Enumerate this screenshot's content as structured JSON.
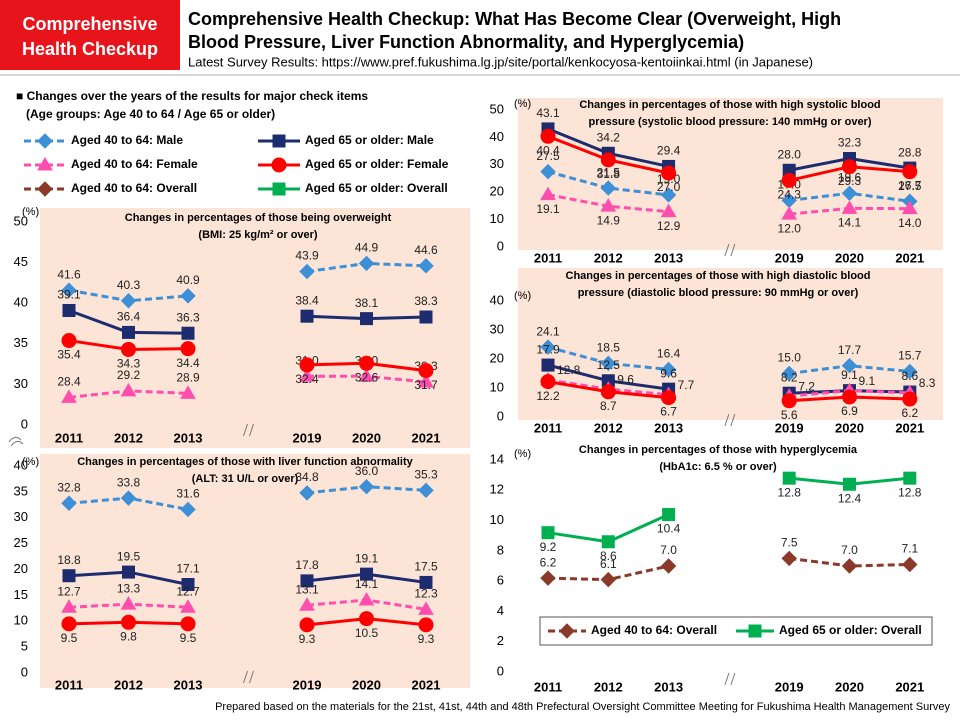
{
  "header": {
    "badge": [
      "Comprehensive",
      "Health Checkup"
    ],
    "title": [
      "Comprehensive Health Checkup: What Has Become Clear (Overweight, High",
      "Blood Pressure, Liver Function Abnormality, and Hyperglycemia)"
    ],
    "subtitle": "Latest Survey Results: https://www.pref.fukushima.lg.jp/site/portal/kenkocyosa-kentoiinkai.html (in Japanese)"
  },
  "intro": [
    "■ Changes over the years of the results for major check items",
    "(Age groups: Age 40 to 64 / Age 65 or older)"
  ],
  "legend": [
    {
      "name": "Aged 40 to 64: Male",
      "color": "#3d8fd6",
      "dashed": true,
      "marker": "diamond"
    },
    {
      "name": "Aged 65 or older: Male",
      "color": "#1c2c6e",
      "dashed": false,
      "marker": "square"
    },
    {
      "name": "Aged 40 to 64: Female",
      "color": "#ff4fae",
      "dashed": true,
      "marker": "triangle"
    },
    {
      "name": "Aged 65 or older: Female",
      "color": "#ff0000",
      "dashed": false,
      "marker": "circle"
    },
    {
      "name": "Aged 40 to 64: Overall",
      "color": "#8b3a2a",
      "dashed": true,
      "marker": "diamond"
    },
    {
      "name": "Aged 65 or older: Overall",
      "color": "#00b050",
      "dashed": false,
      "marker": "square"
    }
  ],
  "chart_data": [
    {
      "type": "line",
      "title": "Changes in percentages of those being overweight",
      "subtitle": "(BMI: 25 kg/m² or over)",
      "ylabel": "(%)",
      "categories": [
        "2011",
        "2012",
        "2013",
        null,
        "2019",
        "2020",
        "2021"
      ],
      "ylim": [
        0,
        50
      ],
      "yticks": [
        0,
        30,
        35,
        40,
        45,
        50
      ],
      "y_break": true,
      "series": [
        {
          "color": "#3d8fd6",
          "dashed": true,
          "marker": "diamond",
          "label_pos": "above",
          "values": [
            41.6,
            40.3,
            40.9,
            null,
            43.9,
            44.9,
            44.6
          ]
        },
        {
          "color": "#1c2c6e",
          "dashed": false,
          "marker": "square",
          "label_pos": "above",
          "values": [
            39.1,
            36.4,
            36.3,
            null,
            38.4,
            38.1,
            38.3
          ]
        },
        {
          "color": "#ff4fae",
          "dashed": true,
          "marker": "triangle",
          "label_pos": "above",
          "values": [
            28.4,
            29.2,
            28.9,
            null,
            31,
            31,
            30.3
          ],
          "value_labels": [
            "28.4",
            "29.2",
            "28.9",
            null,
            "31.0",
            "31.0",
            "30.3"
          ]
        },
        {
          "color": "#ff0000",
          "dashed": false,
          "marker": "circle",
          "label_pos": "below",
          "values": [
            35.4,
            34.3,
            34.4,
            null,
            32.4,
            32.6,
            31.7
          ]
        }
      ]
    },
    {
      "type": "line",
      "title": "Changes in percentages of those with high systolic blood",
      "subtitle": "pressure (systolic blood pressure: 140 mmHg or over)",
      "ylabel": "(%)",
      "categories": [
        "2011",
        "2012",
        "2013",
        null,
        "2019",
        "2020",
        "2021"
      ],
      "ylim": [
        0,
        50
      ],
      "yticks": [
        0,
        10,
        20,
        30,
        40,
        50
      ],
      "series": [
        {
          "color": "#3d8fd6",
          "dashed": true,
          "marker": "diamond",
          "label_pos": "above",
          "values": [
            27.5,
            21.5,
            19,
            null,
            17,
            19.6,
            16.7
          ],
          "value_labels": [
            "27.5",
            "21.5",
            "19.0",
            null,
            "17.0",
            "19.6",
            "16.7"
          ]
        },
        {
          "color": "#1c2c6e",
          "dashed": false,
          "marker": "square",
          "label_pos": "above",
          "values": [
            43.1,
            34.2,
            29.4,
            null,
            28,
            32.3,
            28.8
          ],
          "value_labels": [
            "43.1",
            "34.2",
            "29.4",
            null,
            "28.0",
            "32.3",
            "28.8"
          ]
        },
        {
          "color": "#ff4fae",
          "dashed": true,
          "marker": "triangle",
          "label_pos": "below",
          "values": [
            19.1,
            14.9,
            12.9,
            null,
            12,
            14.1,
            14
          ],
          "value_labels": [
            "19.1",
            "14.9",
            "12.9",
            null,
            "12.0",
            "14.1",
            "14.0"
          ]
        },
        {
          "color": "#ff0000",
          "dashed": false,
          "marker": "circle",
          "label_pos": "below",
          "values": [
            40.4,
            31.8,
            27,
            null,
            24.3,
            29.3,
            27.5
          ],
          "value_labels": [
            "40.4",
            "31.8",
            "27.0",
            null,
            "24.3",
            "29.3",
            "27.5"
          ]
        }
      ]
    },
    {
      "type": "line",
      "title": "Changes in percentages of those with liver function abnormality",
      "subtitle": "(ALT: 31 U/L or over)",
      "ylabel": "(%)",
      "categories": [
        "2011",
        "2012",
        "2013",
        null,
        "2019",
        "2020",
        "2021"
      ],
      "ylim": [
        0,
        40
      ],
      "yticks": [
        0,
        5,
        10,
        15,
        20,
        25,
        30,
        35,
        40
      ],
      "series": [
        {
          "color": "#3d8fd6",
          "dashed": true,
          "marker": "diamond",
          "label_pos": "above",
          "values": [
            32.8,
            33.8,
            31.6,
            null,
            34.8,
            36,
            35.3
          ],
          "value_labels": [
            "32.8",
            "33.8",
            "31.6",
            null,
            "34.8",
            "36.0",
            "35.3"
          ]
        },
        {
          "color": "#1c2c6e",
          "dashed": false,
          "marker": "square",
          "label_pos": "above",
          "values": [
            18.8,
            19.5,
            17.1,
            null,
            17.8,
            19.1,
            17.5
          ]
        },
        {
          "color": "#ff4fae",
          "dashed": true,
          "marker": "triangle",
          "label_pos": "above",
          "values": [
            12.7,
            13.3,
            12.7,
            null,
            13.1,
            14.1,
            12.3
          ]
        },
        {
          "color": "#ff0000",
          "dashed": false,
          "marker": "circle",
          "label_pos": "below",
          "values": [
            9.5,
            9.8,
            9.5,
            null,
            9.3,
            10.5,
            9.3
          ]
        }
      ]
    },
    {
      "type": "line",
      "title": "Changes in percentages of those with high diastolic blood",
      "subtitle": "pressure (diastolic blood pressure: 90 mmHg or over)",
      "ylabel": "(%)",
      "categories": [
        "2011",
        "2012",
        "2013",
        null,
        "2019",
        "2020",
        "2021"
      ],
      "ylim": [
        0,
        40
      ],
      "yticks": [
        0,
        10,
        20,
        30,
        40
      ],
      "series": [
        {
          "color": "#3d8fd6",
          "dashed": true,
          "marker": "diamond",
          "label_pos": "above",
          "values": [
            24.1,
            18.5,
            16.4,
            null,
            15,
            17.7,
            15.7
          ],
          "value_labels": [
            "24.1",
            "18.5",
            "16.4",
            null,
            "15.0",
            "17.7",
            "15.7"
          ]
        },
        {
          "color": "#1c2c6e",
          "dashed": false,
          "marker": "square",
          "label_pos": "above",
          "values": [
            17.9,
            12.5,
            9.6,
            null,
            8.2,
            9.1,
            8.6
          ]
        },
        {
          "color": "#ff4fae",
          "dashed": true,
          "marker": "triangle",
          "label_pos": "right",
          "values": [
            12.8,
            9.6,
            7.7,
            null,
            7.2,
            9.1,
            8.3
          ]
        },
        {
          "color": "#ff0000",
          "dashed": false,
          "marker": "circle",
          "label_pos": "below",
          "values": [
            12.2,
            8.7,
            6.7,
            null,
            5.6,
            6.9,
            6.2
          ]
        }
      ]
    },
    {
      "type": "line",
      "title": "Changes in percentages of those with hyperglycemia",
      "subtitle": "(HbA1c: 6.5 % or over)",
      "ylabel": "(%)",
      "categories": [
        "2011",
        "2012",
        "2013",
        null,
        "2019",
        "2020",
        "2021"
      ],
      "ylim": [
        0,
        14
      ],
      "yticks": [
        0,
        2,
        4,
        6,
        8,
        10,
        12,
        14
      ],
      "series": [
        {
          "name": "Aged 40 to 64: Overall",
          "color": "#8b3a2a",
          "dashed": true,
          "marker": "diamond",
          "label_pos": "above",
          "values": [
            6.2,
            6.1,
            7,
            null,
            7.5,
            7,
            7.1
          ],
          "value_labels": [
            "6.2",
            "6.1",
            "7.0",
            null,
            "7.5",
            "7.0",
            "7.1"
          ]
        },
        {
          "name": "Aged 65 or older: Overall",
          "color": "#00b050",
          "dashed": false,
          "marker": "square",
          "label_pos": "below",
          "values": [
            9.2,
            8.6,
            10.4,
            null,
            12.8,
            12.4,
            12.8
          ]
        }
      ]
    }
  ],
  "footer": "Prepared based on the materials for the 21st, 41st, 44th and 48th Prefectural Oversight Committee Meeting for Fukushima Health Management Survey"
}
